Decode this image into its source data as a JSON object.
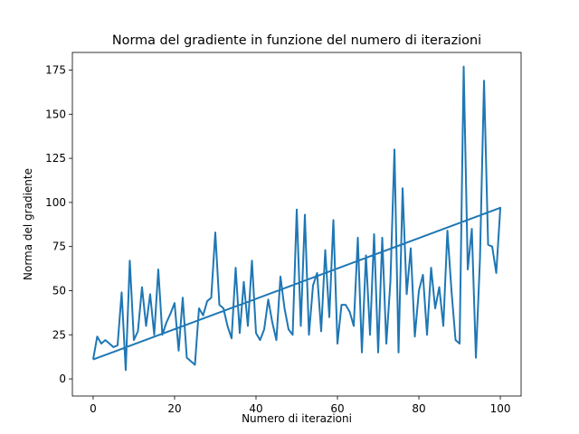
{
  "chart_data": {
    "type": "line",
    "title": "Norma del gradiente in funzione del numero di iterazioni",
    "x_label": "Numero di iterazioni",
    "y_label": "Norma del gradiente",
    "x": [
      0,
      1,
      2,
      3,
      4,
      5,
      6,
      7,
      8,
      9,
      10,
      11,
      12,
      13,
      14,
      15,
      16,
      17,
      18,
      19,
      20,
      21,
      22,
      23,
      24,
      25,
      26,
      27,
      28,
      29,
      30,
      31,
      32,
      33,
      34,
      35,
      36,
      37,
      38,
      39,
      40,
      41,
      42,
      43,
      44,
      45,
      46,
      47,
      48,
      49,
      50,
      51,
      52,
      53,
      54,
      55,
      56,
      57,
      58,
      59,
      60,
      61,
      62,
      63,
      64,
      65,
      66,
      67,
      68,
      69,
      70,
      71,
      72,
      73,
      74,
      75,
      76,
      77,
      78,
      79,
      80,
      81,
      82,
      83,
      84,
      85,
      86,
      87,
      88,
      89,
      90,
      91,
      92,
      93,
      94,
      95,
      96,
      97,
      98,
      99,
      100,
      0
    ],
    "series": [
      {
        "name": "Norma del gradiente",
        "color": "#1f77b4",
        "values": [
          11,
          24,
          20,
          22,
          20,
          18,
          19,
          49,
          5,
          67,
          22,
          27,
          52,
          30,
          48,
          25,
          62,
          25,
          32,
          37,
          43,
          16,
          46,
          12,
          10,
          8,
          40,
          36,
          44,
          46,
          83,
          42,
          40,
          30,
          23,
          63,
          26,
          55,
          30,
          67,
          26,
          22,
          28,
          45,
          32,
          22,
          58,
          40,
          28,
          25,
          96,
          30,
          93,
          25,
          53,
          60,
          27,
          73,
          35,
          90,
          20,
          42,
          42,
          38,
          30,
          80,
          15,
          70,
          25,
          82,
          15,
          80,
          20,
          55,
          130,
          15,
          108,
          48,
          74,
          24,
          50,
          59,
          25,
          63,
          40,
          52,
          30,
          84,
          50,
          22,
          20,
          177,
          62,
          85,
          12,
          68,
          169,
          76,
          75,
          60,
          97,
          11
        ]
      }
    ],
    "xlim": [
      -5.1,
      105.1
    ],
    "ylim": [
      -9.7,
      185
    ],
    "xticks": [
      0,
      20,
      40,
      60,
      80,
      100
    ],
    "yticks": [
      0,
      25,
      50,
      75,
      100,
      125,
      150,
      175
    ]
  }
}
